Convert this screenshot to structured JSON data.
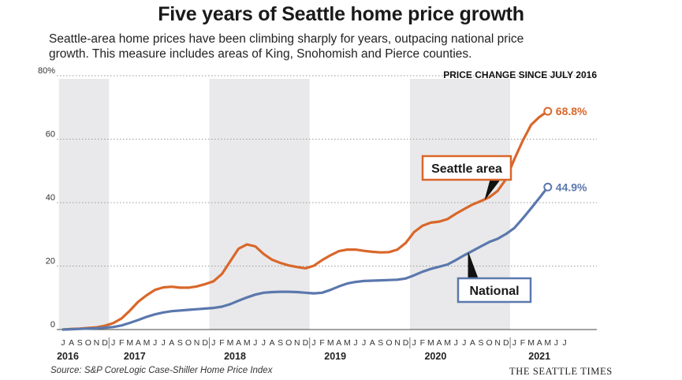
{
  "header": {
    "title": "Five years of Seattle home price growth",
    "subtitle_line1": "Seattle-area home prices have been climbing sharply for years, outpacing national price",
    "subtitle_line2": "growth. This measure includes areas of King, Snohomish and Pierce counties."
  },
  "footer": {
    "source": "Source: S&P CoreLogic Case-Shiller Home Price Index",
    "brand": "THE SEATTLE TIMES"
  },
  "chart_data": {
    "type": "line",
    "title": "Five years of Seattle home price growth",
    "panel_label": "PRICE CHANGE SINCE JULY 2016",
    "ylim": [
      0,
      80
    ],
    "yticks": [
      0,
      20,
      40,
      60,
      80
    ],
    "ytick_labels": [
      "0",
      "20",
      "40",
      "60",
      "80%"
    ],
    "month_letters": [
      "J",
      "A",
      "S",
      "O",
      "N",
      "D",
      "J",
      "F",
      "M",
      "A",
      "M",
      "J",
      "J",
      "A",
      "S",
      "O",
      "N",
      "D",
      "J",
      "F",
      "M",
      "A",
      "M",
      "J",
      "J",
      "A",
      "S",
      "O",
      "N",
      "D",
      "J",
      "F",
      "M",
      "A",
      "M",
      "J",
      "J",
      "A",
      "S",
      "O",
      "N",
      "D",
      "J",
      "F",
      "M",
      "A",
      "M",
      "J",
      "J",
      "A",
      "S",
      "O",
      "N",
      "D",
      "J",
      "F",
      "M",
      "A",
      "M",
      "J",
      "J"
    ],
    "years": [
      {
        "label": "2016",
        "start": 0,
        "end": 5
      },
      {
        "label": "2017",
        "start": 6,
        "end": 17
      },
      {
        "label": "2018",
        "start": 18,
        "end": 29
      },
      {
        "label": "2019",
        "start": 30,
        "end": 41
      },
      {
        "label": "2020",
        "start": 42,
        "end": 53
      },
      {
        "label": "2021",
        "start": 54,
        "end": 60
      }
    ],
    "shaded_years": [
      "2016",
      "2018",
      "2020"
    ],
    "series": [
      {
        "name": "Seattle area",
        "color": "#d9672a",
        "end_label": "68.8%",
        "values": [
          0,
          0.2,
          0.3,
          0.5,
          0.7,
          1.2,
          2,
          3.5,
          6,
          8.8,
          10.8,
          12.5,
          13.3,
          13.5,
          13.2,
          13.2,
          13.6,
          14.3,
          15.2,
          17.5,
          21.5,
          25.5,
          26.8,
          26.2,
          23.8,
          22,
          21,
          20.2,
          19.7,
          19.3,
          20.1,
          21.9,
          23.4,
          24.7,
          25.2,
          25.2,
          24.8,
          24.5,
          24.3,
          24.4,
          25.2,
          27.3,
          30.7,
          32.7,
          33.7,
          34,
          34.8,
          36.5,
          38,
          39.4,
          40.5,
          41.7,
          43.7,
          47.4,
          53.7,
          59.5,
          64.5,
          67,
          68.8
        ]
      },
      {
        "name": "National",
        "color": "#5b78ad",
        "end_label": "44.9%",
        "values": [
          0,
          0.1,
          0.2,
          0.3,
          0.4,
          0.6,
          0.8,
          1.3,
          2.1,
          3,
          4,
          4.8,
          5.4,
          5.8,
          6,
          6.2,
          6.4,
          6.6,
          6.8,
          7.2,
          8,
          9.1,
          10.1,
          11,
          11.6,
          11.8,
          11.9,
          11.9,
          11.8,
          11.6,
          11.4,
          11.6,
          12.5,
          13.6,
          14.5,
          15,
          15.3,
          15.4,
          15.5,
          15.6,
          15.7,
          16.1,
          17.1,
          18.2,
          19.1,
          19.8,
          20.5,
          21.9,
          23.4,
          24.8,
          26.2,
          27.6,
          28.6,
          30.1,
          32,
          35,
          38.2,
          41.5,
          44.9
        ]
      }
    ],
    "callouts": [
      {
        "series": "Seattle area",
        "text": "Seattle area"
      },
      {
        "series": "National",
        "text": "National"
      }
    ]
  }
}
